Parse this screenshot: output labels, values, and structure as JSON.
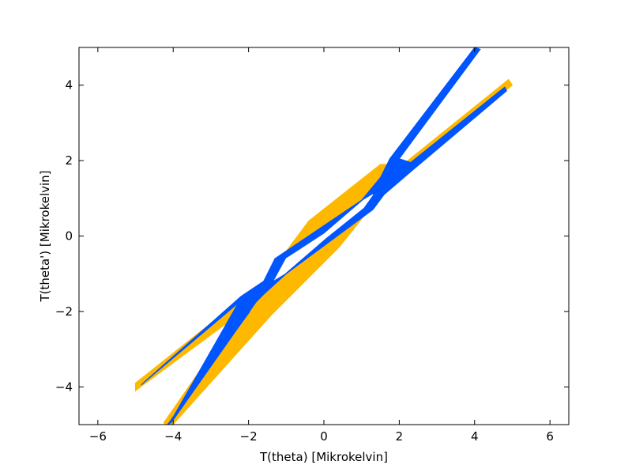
{
  "chart_data": {
    "type": "contour",
    "title": "",
    "xlabel": "T(theta) [Mikrokelvin]",
    "ylabel": "T(theta') [Mikrokelvin]",
    "xlim": [
      -6.5,
      6.5
    ],
    "ylim": [
      -5,
      5
    ],
    "xticks": [
      -6,
      -4,
      -2,
      0,
      2,
      4,
      6
    ],
    "yticks": [
      -4,
      -2,
      0,
      2,
      4
    ],
    "grid": false,
    "legend": "none",
    "data_extent": {
      "x": [
        -5,
        5
      ],
      "y": [
        -5,
        5
      ]
    },
    "colors": {
      "outer": "#FFB800",
      "inner": "#0055FF",
      "background": "#FFFFFF"
    },
    "contours": [
      {
        "name": "outer",
        "color": "#FFB800",
        "polygon": [
          [
            -0.4,
            0.4
          ],
          [
            1.5,
            1.9
          ],
          [
            2.1,
            1.9
          ],
          [
            4.9,
            4.15
          ],
          [
            5.0,
            4.0
          ],
          [
            2.3,
            1.8
          ],
          [
            1.6,
            1.2
          ],
          [
            0.4,
            -0.3
          ],
          [
            -1.4,
            -2.1
          ],
          [
            -4.1,
            -5.1
          ],
          [
            -4.25,
            -4.95
          ],
          [
            -2.1,
            -1.85
          ],
          [
            -1.55,
            -1.55
          ],
          [
            -5.0,
            -4.1
          ],
          [
            -5.0,
            -3.9
          ],
          [
            -1.6,
            -1.2
          ],
          [
            -0.4,
            0.4
          ]
        ],
        "arm_hole_bottom": [
          [
            -4.05,
            -4.85
          ],
          [
            -1.95,
            -2.0
          ],
          [
            -2.3,
            -1.8
          ],
          [
            -4.1,
            -4.95
          ]
        ],
        "arm_hole_top": [
          [
            4.1,
            4.9
          ],
          [
            2.05,
            2.15
          ],
          [
            1.65,
            1.85
          ],
          [
            4.0,
            4.95
          ]
        ]
      },
      {
        "name": "inner",
        "color": "#0055FF",
        "polygon": [
          [
            -1.3,
            -0.6
          ],
          [
            1.0,
            0.95
          ],
          [
            1.5,
            1.55
          ],
          [
            1.75,
            2.05
          ],
          [
            4.0,
            5.0
          ],
          [
            4.15,
            4.95
          ],
          [
            2.0,
            2.05
          ],
          [
            2.3,
            1.95
          ],
          [
            4.8,
            3.95
          ],
          [
            4.85,
            3.85
          ],
          [
            2.3,
            1.7
          ],
          [
            1.6,
            1.1
          ],
          [
            1.3,
            0.7
          ],
          [
            -1.0,
            -1.0
          ],
          [
            -1.6,
            -1.55
          ],
          [
            -1.8,
            -1.75
          ],
          [
            -4.05,
            -4.95
          ],
          [
            -4.15,
            -5.0
          ],
          [
            -2.0,
            -2.0
          ],
          [
            -2.3,
            -1.8
          ],
          [
            -4.85,
            -3.95
          ],
          [
            -4.8,
            -3.9
          ],
          [
            -2.2,
            -1.6
          ],
          [
            -1.6,
            -1.2
          ],
          [
            -1.3,
            -0.6
          ]
        ]
      },
      {
        "name": "center",
        "color": "#FFFFFF",
        "polygon": [
          [
            -1.0,
            -0.6
          ],
          [
            0.0,
            0.05
          ],
          [
            1.05,
            0.95
          ],
          [
            1.3,
            1.1
          ],
          [
            1.05,
            0.75
          ],
          [
            0.05,
            -0.05
          ],
          [
            -1.05,
            -1.0
          ],
          [
            -1.3,
            -1.15
          ],
          [
            -1.0,
            -0.6
          ]
        ]
      }
    ]
  }
}
